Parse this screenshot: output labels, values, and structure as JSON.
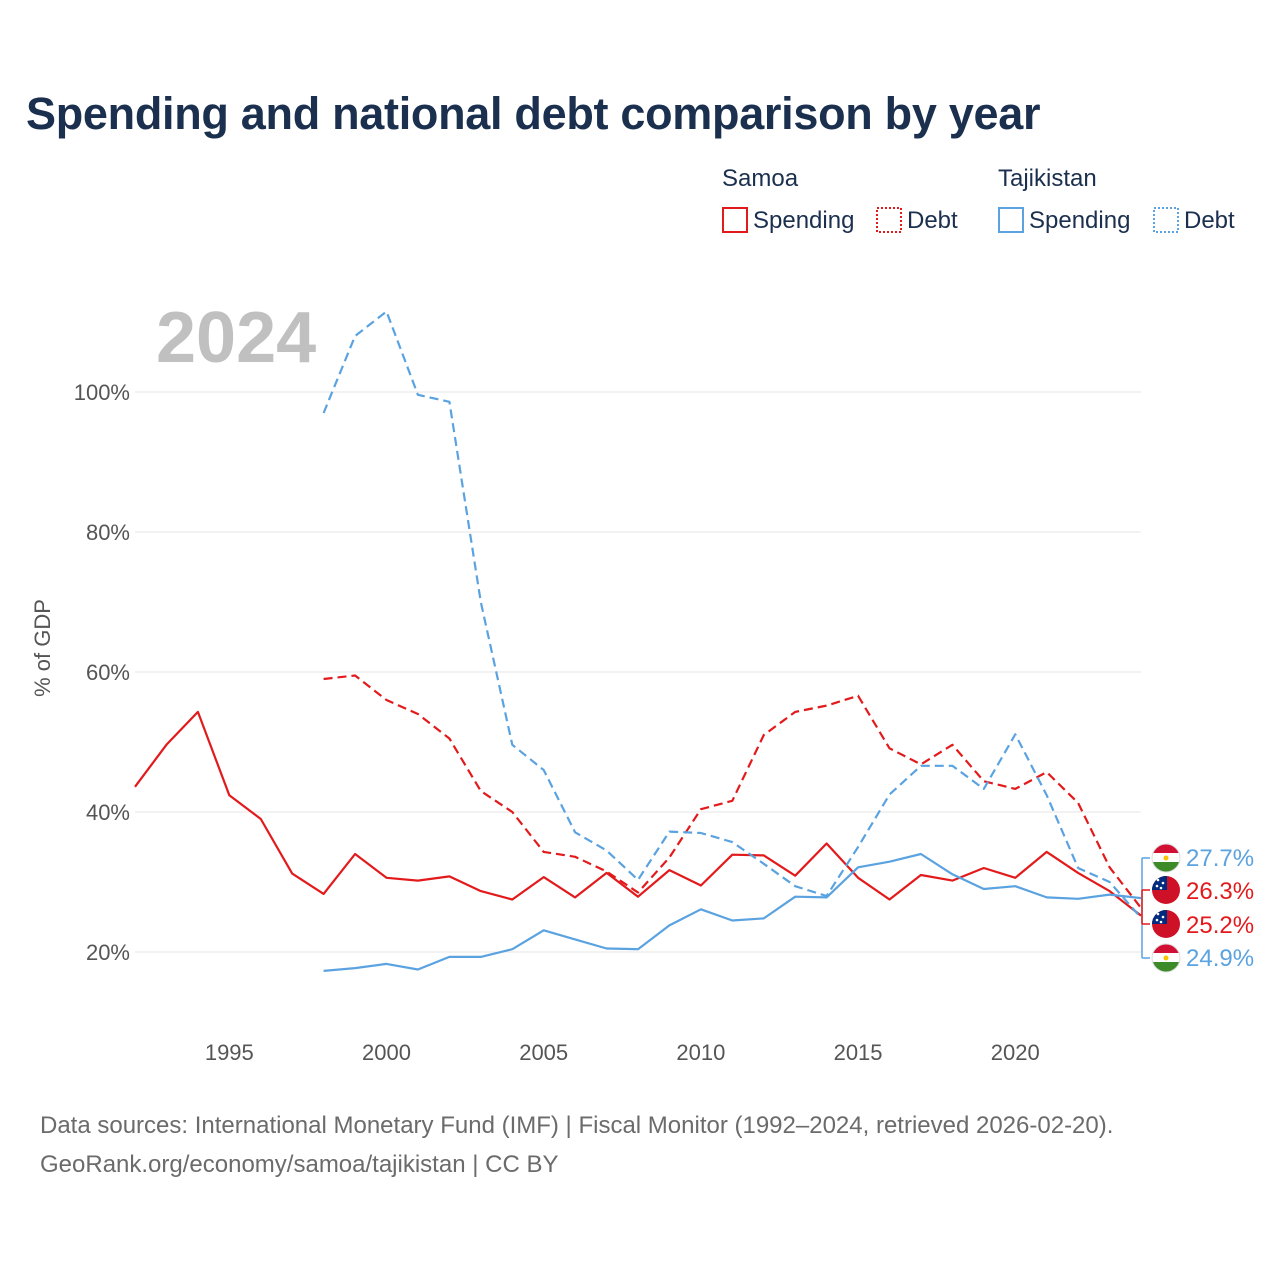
{
  "title": "Spending and national debt comparison by year",
  "year_label": "2024",
  "footer": {
    "line1": "Data sources: International Monetary Fund (IMF) | Fiscal Monitor (1992–2024, retrieved 2026-02-20).",
    "line2": "GeoRank.org/economy/samoa/tajikistan | CC BY"
  },
  "legend": {
    "groups": [
      {
        "country": "Samoa",
        "color": "#e31a1c",
        "items": [
          "Spending",
          "Debt"
        ]
      },
      {
        "country": "Tajikistan",
        "color": "#5aa2e0",
        "items": [
          "Spending",
          "Debt"
        ]
      }
    ]
  },
  "icons": {
    "samoa_flag": "samoa-flag-icon",
    "tajikistan_flag": "tajikistan-flag-icon"
  },
  "chart_data": {
    "type": "line",
    "title": "Spending and national debt comparison by year",
    "xlabel": "",
    "ylabel": "% of GDP",
    "xlim": [
      1992,
      2024
    ],
    "ylim": [
      10,
      115
    ],
    "x_ticks": [
      1995,
      2000,
      2005,
      2010,
      2015,
      2020
    ],
    "y_ticks": [
      20,
      40,
      60,
      80,
      100
    ],
    "y_tick_labels": [
      "20%",
      "40%",
      "60%",
      "80%",
      "100%"
    ],
    "x_tick_labels": [
      "1995",
      "2000",
      "2005",
      "2010",
      "2015",
      "2020"
    ],
    "grid": true,
    "series": [
      {
        "name": "Samoa Spending",
        "country": "Samoa",
        "metric": "Spending",
        "color": "#e31a1c",
        "dash": "solid",
        "end_label": "25.2%",
        "x": [
          1992,
          1993,
          1994,
          1995,
          1996,
          1997,
          1998,
          1999,
          2000,
          2001,
          2002,
          2003,
          2004,
          2005,
          2006,
          2007,
          2008,
          2009,
          2010,
          2011,
          2012,
          2013,
          2014,
          2015,
          2016,
          2017,
          2018,
          2019,
          2020,
          2021,
          2022,
          2023,
          2024
        ],
        "values": [
          43.6,
          49.6,
          54.3,
          42.4,
          39.0,
          31.2,
          28.3,
          34.0,
          30.6,
          30.2,
          30.8,
          28.7,
          27.5,
          30.7,
          27.8,
          31.3,
          27.9,
          31.7,
          29.5,
          33.9,
          33.8,
          30.9,
          35.5,
          30.6,
          27.5,
          31.0,
          30.2,
          32.0,
          30.6,
          34.3,
          31.3,
          28.7,
          25.2
        ]
      },
      {
        "name": "Samoa Debt",
        "country": "Samoa",
        "metric": "Debt",
        "color": "#e31a1c",
        "dash": "dashed",
        "end_label": "26.3%",
        "x": [
          1998,
          1999,
          2000,
          2001,
          2002,
          2003,
          2004,
          2005,
          2006,
          2007,
          2008,
          2009,
          2010,
          2011,
          2012,
          2013,
          2014,
          2015,
          2016,
          2017,
          2018,
          2019,
          2020,
          2021,
          2022,
          2023,
          2024
        ],
        "values": [
          59.0,
          59.5,
          56.0,
          54.0,
          50.5,
          43.0,
          40.0,
          34.3,
          33.6,
          31.5,
          28.5,
          33.5,
          40.4,
          41.6,
          51.0,
          54.3,
          55.2,
          56.6,
          49.1,
          46.8,
          49.6,
          44.4,
          43.3,
          45.7,
          41.3,
          32.1,
          26.3
        ]
      },
      {
        "name": "Tajikistan Spending",
        "country": "Tajikistan",
        "metric": "Spending",
        "color": "#5aa2e0",
        "dash": "solid",
        "end_label": "27.7%",
        "x": [
          1998,
          1999,
          2000,
          2001,
          2002,
          2003,
          2004,
          2005,
          2006,
          2007,
          2008,
          2009,
          2010,
          2011,
          2012,
          2013,
          2014,
          2015,
          2016,
          2017,
          2018,
          2019,
          2020,
          2021,
          2022,
          2023,
          2024
        ],
        "values": [
          17.3,
          17.7,
          18.3,
          17.5,
          19.3,
          19.3,
          20.4,
          23.1,
          21.8,
          20.5,
          20.4,
          23.8,
          26.1,
          24.5,
          24.8,
          27.9,
          27.8,
          32.1,
          32.9,
          34.0,
          31.1,
          29.0,
          29.4,
          27.8,
          27.6,
          28.2,
          27.7
        ]
      },
      {
        "name": "Tajikistan Debt",
        "country": "Tajikistan",
        "metric": "Debt",
        "color": "#5aa2e0",
        "dash": "dashed",
        "end_label": "24.9%",
        "x": [
          1998,
          1999,
          2000,
          2001,
          2002,
          2003,
          2004,
          2005,
          2006,
          2007,
          2008,
          2009,
          2010,
          2011,
          2012,
          2013,
          2014,
          2015,
          2016,
          2017,
          2018,
          2019,
          2020,
          2021,
          2022,
          2023,
          2024
        ],
        "values": [
          97.0,
          108.0,
          111.5,
          99.6,
          98.6,
          70.0,
          49.6,
          46.0,
          37.1,
          34.5,
          30.3,
          37.2,
          37.0,
          35.7,
          32.6,
          29.4,
          28.0,
          35.0,
          42.5,
          46.6,
          46.6,
          43.3,
          51.1,
          42.4,
          32.0,
          30.0,
          24.9
        ]
      }
    ]
  }
}
